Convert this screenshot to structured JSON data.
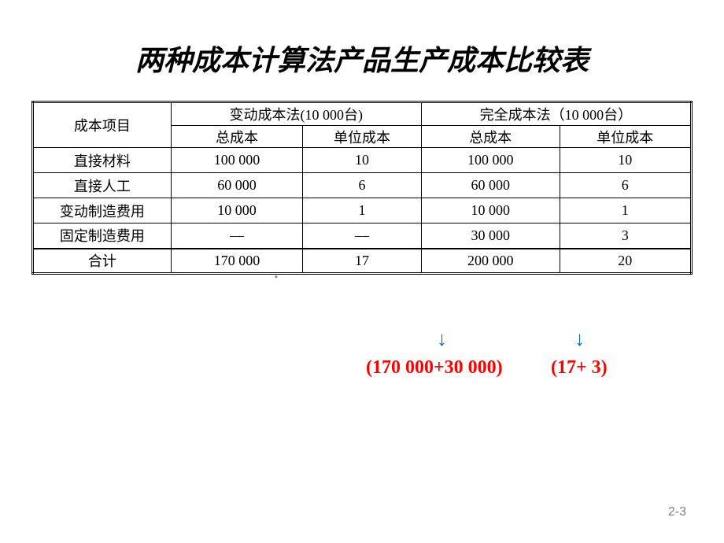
{
  "title": "两种成本计算法产品生产成本比较表",
  "header": {
    "item": "成本项目",
    "group1": "变动成本法(10 000台)",
    "group2": "完全成本法（10 000台）",
    "total": "总成本",
    "unit": "单位成本"
  },
  "rows": [
    {
      "name": "直接材料",
      "a": "100 000",
      "b": "10",
      "c": "100 000",
      "d": "10"
    },
    {
      "name": "直接人工",
      "a": "60 000",
      "b": "6",
      "c": "60 000",
      "d": "6"
    },
    {
      "name": "变动制造费用",
      "a": "10 000",
      "b": "1",
      "c": "10 000",
      "d": "1"
    },
    {
      "name": "固定制造费用",
      "a": "—",
      "b": "—",
      "c": "30 000",
      "d": "3"
    },
    {
      "name": "合计",
      "a": "170 000",
      "b": "17",
      "c": "200 000",
      "d": "20"
    }
  ],
  "arrows": {
    "a1": "↓",
    "a2": "↓"
  },
  "formulas": {
    "f1": "(170 000+30 000)",
    "f2": "(17+ 3)"
  },
  "bullet": "▪",
  "pagenum": "2-3"
}
